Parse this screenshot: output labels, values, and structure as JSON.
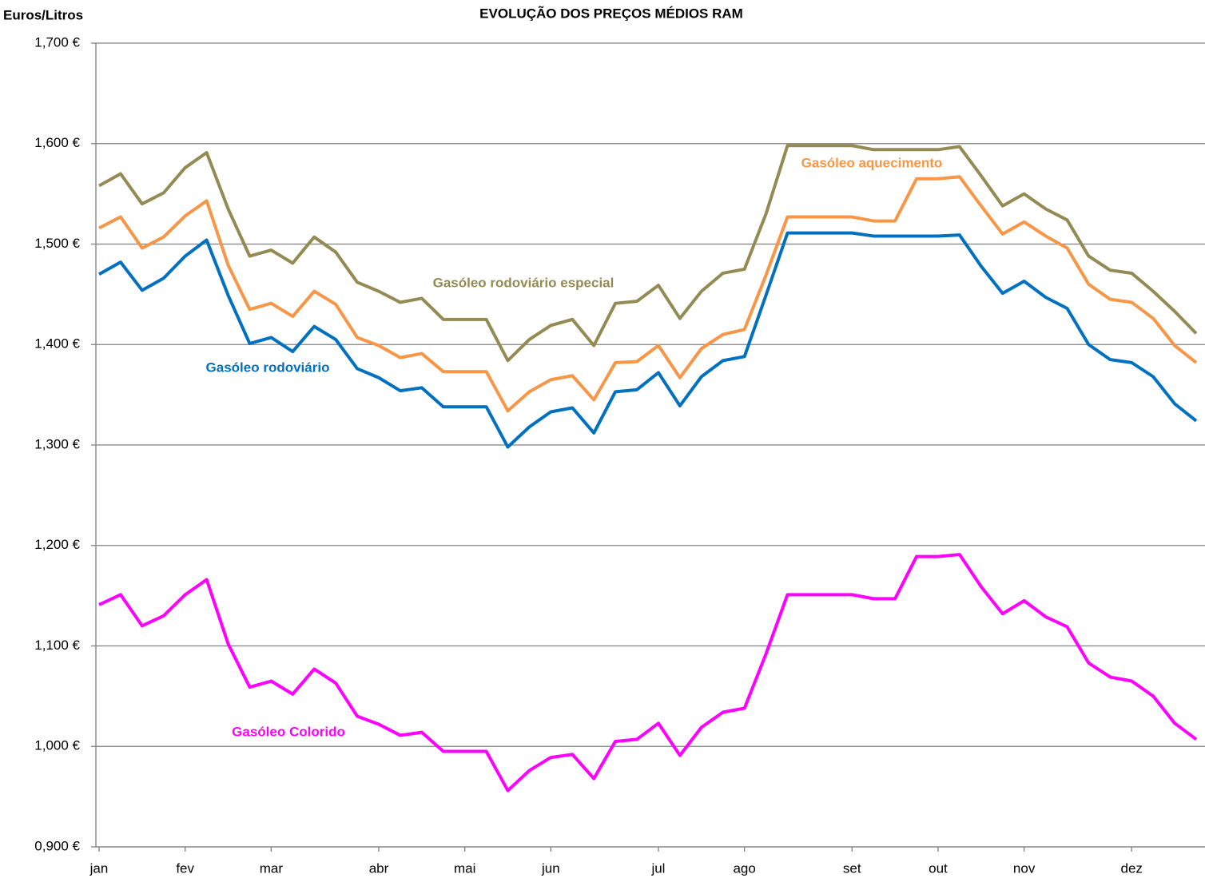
{
  "chart_data": {
    "type": "line",
    "title": "EVOLUÇÃO DOS PREÇOS MÉDIOS RAM",
    "y_label": "Euros/Litros",
    "categories": [
      "jan",
      null,
      null,
      null,
      "fev",
      null,
      null,
      null,
      "mar",
      null,
      null,
      null,
      null,
      "abr",
      null,
      null,
      null,
      "mai",
      null,
      null,
      null,
      "jun",
      null,
      null,
      null,
      null,
      "jul",
      null,
      null,
      null,
      "ago",
      null,
      null,
      null,
      null,
      "set",
      null,
      null,
      null,
      "out",
      null,
      null,
      null,
      "nov",
      null,
      null,
      null,
      null,
      "dez",
      null,
      null,
      null
    ],
    "ylim": [
      0.9,
      1.7
    ],
    "yticks": [
      {
        "value": 0.9,
        "label": "0,900 €"
      },
      {
        "value": 1.0,
        "label": "1,000 €"
      },
      {
        "value": 1.1,
        "label": "1,100 €"
      },
      {
        "value": 1.2,
        "label": "1,200 €"
      },
      {
        "value": 1.3,
        "label": "1,300 €"
      },
      {
        "value": 1.4,
        "label": "1,400 €"
      },
      {
        "value": 1.5,
        "label": "1,500 €"
      },
      {
        "value": 1.6,
        "label": "1,600 €"
      },
      {
        "value": 1.7,
        "label": "1,700 €"
      }
    ],
    "grid": true,
    "series": [
      {
        "name": "Gasóleo rodoviário especial",
        "color": "#948a54",
        "values": [
          1.558,
          1.57,
          1.54,
          1.551,
          1.576,
          1.591,
          1.535,
          1.488,
          1.494,
          1.481,
          1.507,
          1.492,
          1.462,
          1.453,
          1.442,
          1.446,
          1.425,
          1.425,
          1.425,
          1.384,
          1.405,
          1.419,
          1.425,
          1.399,
          1.441,
          1.443,
          1.459,
          1.426,
          1.453,
          1.471,
          1.475,
          1.53,
          1.598,
          1.598,
          1.598,
          1.598,
          1.594,
          1.594,
          1.594,
          1.594,
          1.597,
          1.568,
          1.538,
          1.55,
          1.535,
          1.524,
          1.488,
          1.474,
          1.471,
          1.453,
          1.433,
          1.411
        ]
      },
      {
        "name": "Gasóleo aquecimento",
        "color": "#f79646",
        "values": [
          1.516,
          1.527,
          1.496,
          1.507,
          1.528,
          1.543,
          1.479,
          1.435,
          1.441,
          1.428,
          1.453,
          1.44,
          1.407,
          1.399,
          1.387,
          1.391,
          1.373,
          1.373,
          1.373,
          1.334,
          1.353,
          1.365,
          1.369,
          1.345,
          1.382,
          1.383,
          1.399,
          1.367,
          1.396,
          1.41,
          1.415,
          1.469,
          1.527,
          1.527,
          1.527,
          1.527,
          1.523,
          1.523,
          1.565,
          1.565,
          1.567,
          1.538,
          1.51,
          1.522,
          1.508,
          1.496,
          1.46,
          1.445,
          1.442,
          1.426,
          1.399,
          1.382
        ]
      },
      {
        "name": "Gasóleo rodoviário",
        "color": "#0070c0",
        "values": [
          1.47,
          1.482,
          1.454,
          1.466,
          1.488,
          1.504,
          1.449,
          1.401,
          1.407,
          1.393,
          1.418,
          1.405,
          1.376,
          1.367,
          1.354,
          1.357,
          1.338,
          1.338,
          1.338,
          1.298,
          1.318,
          1.333,
          1.337,
          1.312,
          1.353,
          1.355,
          1.372,
          1.339,
          1.368,
          1.384,
          1.388,
          1.449,
          1.511,
          1.511,
          1.511,
          1.511,
          1.508,
          1.508,
          1.508,
          1.508,
          1.509,
          1.478,
          1.451,
          1.463,
          1.447,
          1.436,
          1.4,
          1.385,
          1.382,
          1.368,
          1.341,
          1.324
        ]
      },
      {
        "name": "Gasóleo Colorido",
        "color": "#ff00ff",
        "values": [
          1.141,
          1.151,
          1.12,
          1.13,
          1.151,
          1.166,
          1.102,
          1.059,
          1.065,
          1.052,
          1.077,
          1.063,
          1.03,
          1.022,
          1.011,
          1.014,
          0.995,
          0.995,
          0.995,
          0.956,
          0.976,
          0.989,
          0.992,
          0.968,
          1.005,
          1.007,
          1.023,
          0.991,
          1.019,
          1.034,
          1.038,
          1.092,
          1.151,
          1.151,
          1.151,
          1.151,
          1.147,
          1.147,
          1.189,
          1.189,
          1.191,
          1.159,
          1.132,
          1.145,
          1.129,
          1.119,
          1.083,
          1.069,
          1.065,
          1.05,
          1.023,
          1.007
        ]
      }
    ]
  }
}
